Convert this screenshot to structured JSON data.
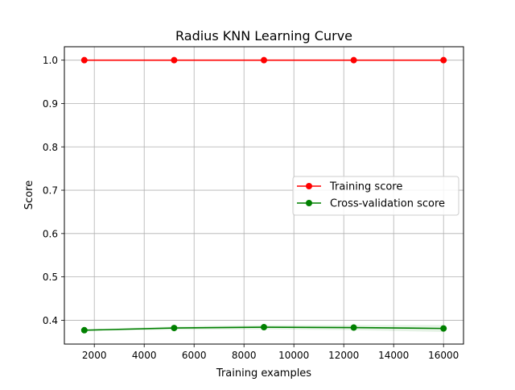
{
  "chart_data": {
    "type": "line",
    "title": "Radius KNN Learning Curve",
    "xlabel": "Training examples",
    "ylabel": "Score",
    "xlim": [
      800,
      16800
    ],
    "ylim": [
      0.345,
      1.031
    ],
    "xticks": [
      2000,
      4000,
      6000,
      8000,
      10000,
      12000,
      14000,
      16000
    ],
    "yticks": [
      0.4,
      0.5,
      0.6,
      0.7,
      0.8,
      0.9,
      1.0
    ],
    "ytick_labels": [
      "0.4",
      "0.5",
      "0.6",
      "0.7",
      "0.8",
      "0.9",
      "1.0"
    ],
    "grid": true,
    "legend_position": "center-right",
    "x": [
      1600,
      5200,
      8800,
      12400,
      16000
    ],
    "series": [
      {
        "name": "Training score",
        "color": "#ff0000",
        "values": [
          1.0,
          1.0,
          1.0,
          1.0,
          1.0
        ],
        "band": [
          [
            1.0,
            1.0
          ],
          [
            1.0,
            1.0
          ],
          [
            1.0,
            1.0
          ],
          [
            1.0,
            1.0
          ],
          [
            1.0,
            1.0
          ]
        ]
      },
      {
        "name": "Cross-validation score",
        "color": "#008000",
        "values": [
          0.377,
          0.382,
          0.384,
          0.383,
          0.381
        ],
        "band": [
          [
            0.375,
            0.379
          ],
          [
            0.378,
            0.386
          ],
          [
            0.379,
            0.389
          ],
          [
            0.377,
            0.389
          ],
          [
            0.373,
            0.389
          ]
        ]
      }
    ]
  }
}
